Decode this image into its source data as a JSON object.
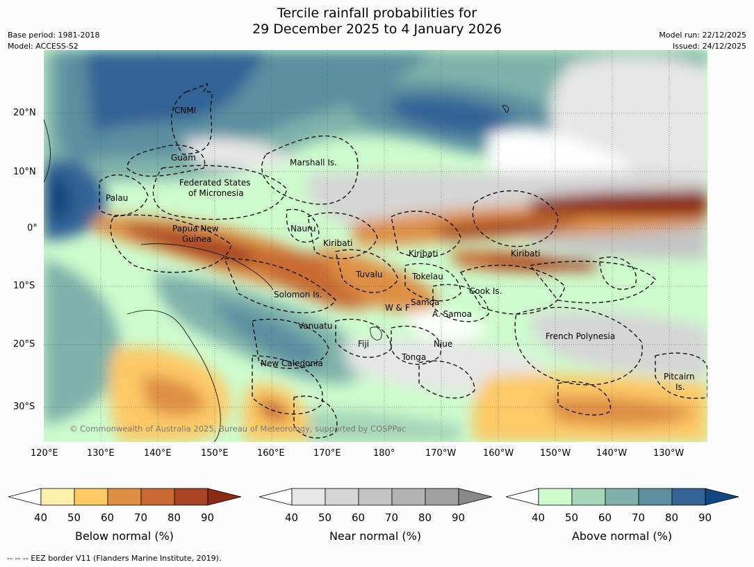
{
  "title": {
    "line1": "Tercile rainfall probabilities for",
    "line2": "29 December 2025 to 4 January 2026"
  },
  "meta": {
    "base_period": "Base period: 1981-2018",
    "model": "Model: ACCESS-S2",
    "model_run": "Model run: 22/12/2025",
    "issued": "Issued: 24/12/2025"
  },
  "map": {
    "lon_labels": [
      "120°E",
      "130°E",
      "140°E",
      "150°E",
      "160°E",
      "170°E",
      "180°",
      "170°W",
      "160°W",
      "150°W",
      "140°W",
      "130°W"
    ],
    "lat_labels": [
      "20°N",
      "10°N",
      "0°",
      "10°S",
      "20°S",
      "30°S"
    ],
    "places": [
      {
        "name": "CNMI"
      },
      {
        "name": "Guam"
      },
      {
        "name": "Marshall Is."
      },
      {
        "name": "Palau"
      },
      {
        "name": "Federated States"
      },
      {
        "name": "of Micronesia"
      },
      {
        "name": "Papua New"
      },
      {
        "name": "Guinea"
      },
      {
        "name": "Nauru"
      },
      {
        "name": "Kiribati"
      },
      {
        "name": "Kiribati"
      },
      {
        "name": "Kiribati"
      },
      {
        "name": "Tuvalu"
      },
      {
        "name": "Tokelau"
      },
      {
        "name": "Solomon Is."
      },
      {
        "name": "W & F"
      },
      {
        "name": "Samoa"
      },
      {
        "name": "A. Samoa"
      },
      {
        "name": "Cook Is."
      },
      {
        "name": "Vanuatu"
      },
      {
        "name": "Fiji"
      },
      {
        "name": "Niue"
      },
      {
        "name": "French Polynesia"
      },
      {
        "name": "Tonga"
      },
      {
        "name": "New Caledonia"
      },
      {
        "name": "Pitcairn"
      },
      {
        "name": "Is."
      }
    ],
    "copyright": "© Commonwealth of Australia 2025, Bureau of Meteorology, supported by COSPPac"
  },
  "colorbars": [
    {
      "title": "Below normal (%)",
      "ticks": [
        "40",
        "50",
        "60",
        "70",
        "80",
        "90"
      ],
      "colors": [
        "#fff0a8",
        "#fdc966",
        "#de8f44",
        "#c86a32",
        "#a84424",
        "#8c2a18"
      ]
    },
    {
      "title": "Near normal (%)",
      "ticks": [
        "40",
        "50",
        "60",
        "70",
        "80",
        "90"
      ],
      "colors": [
        "#e6e6e6",
        "#d5d5d5",
        "#c4c4c4",
        "#b3b3b3",
        "#a0a0a0",
        "#888888"
      ]
    },
    {
      "title": "Above normal (%)",
      "ticks": [
        "40",
        "50",
        "60",
        "70",
        "80",
        "90"
      ],
      "colors": [
        "#cdfbcd",
        "#a6d5b8",
        "#7fb2aa",
        "#5a8fa0",
        "#336496",
        "#124680"
      ]
    }
  ],
  "footnote": "--  --  -- EEZ border V11 (Flanders Marine Institute, 2019)."
}
